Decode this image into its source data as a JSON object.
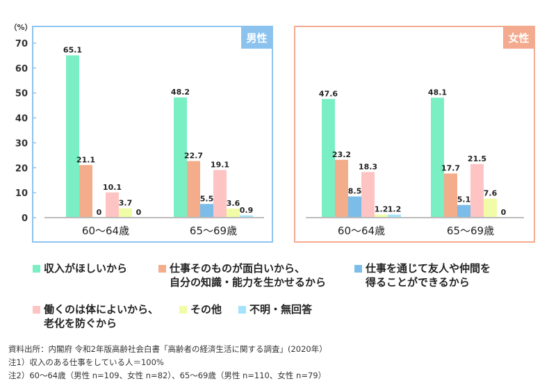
{
  "chart_data": {
    "type": "bar",
    "unit_label": "（%）",
    "ylim": [
      0,
      70
    ],
    "yticks": [
      "0",
      "10",
      "20",
      "30",
      "40",
      "50",
      "60",
      "70"
    ],
    "categories": [
      "60〜64歳",
      "65〜69歳"
    ],
    "series": [
      {
        "name": "収入がほしいから",
        "color": "#79efc3"
      },
      {
        "name": "仕事そのものが面白いから、\n自分の知識・能力を生かせるから",
        "color": "#f3ad8a"
      },
      {
        "name": "仕事を通じて友人や仲間を\n得ることができるから",
        "color": "#7bbde8"
      },
      {
        "name": "働くのは体によいから、\n老化を防ぐから",
        "color": "#fec3c3"
      },
      {
        "name": "その他",
        "color": "#f1fda6"
      },
      {
        "name": "不明・無回答",
        "color": "#a3e3fb"
      }
    ],
    "panels": [
      {
        "title": "男性",
        "color": "#8cc3ee",
        "values": [
          [
            65.1,
            21.1,
            0,
            10.1,
            3.7,
            0
          ],
          [
            48.2,
            22.7,
            5.5,
            19.1,
            3.6,
            0.9
          ]
        ]
      },
      {
        "title": "女性",
        "color": "#f4aa8f",
        "values": [
          [
            47.6,
            23.2,
            8.5,
            18.3,
            1.2,
            1.2
          ],
          [
            48.1,
            17.7,
            5.1,
            21.5,
            7.6,
            0
          ]
        ]
      }
    ]
  },
  "notes": [
    "資料出所：内閣府 令和2年版高齢社会白書「高齢者の経済生活に関する調査」(2020年）",
    "注1）収入のある仕事をしている人＝100%",
    "注2）60〜64歳（男性 n=109、女性 n=82）、65〜69歳（男性 n=110、女性 n=79）"
  ]
}
